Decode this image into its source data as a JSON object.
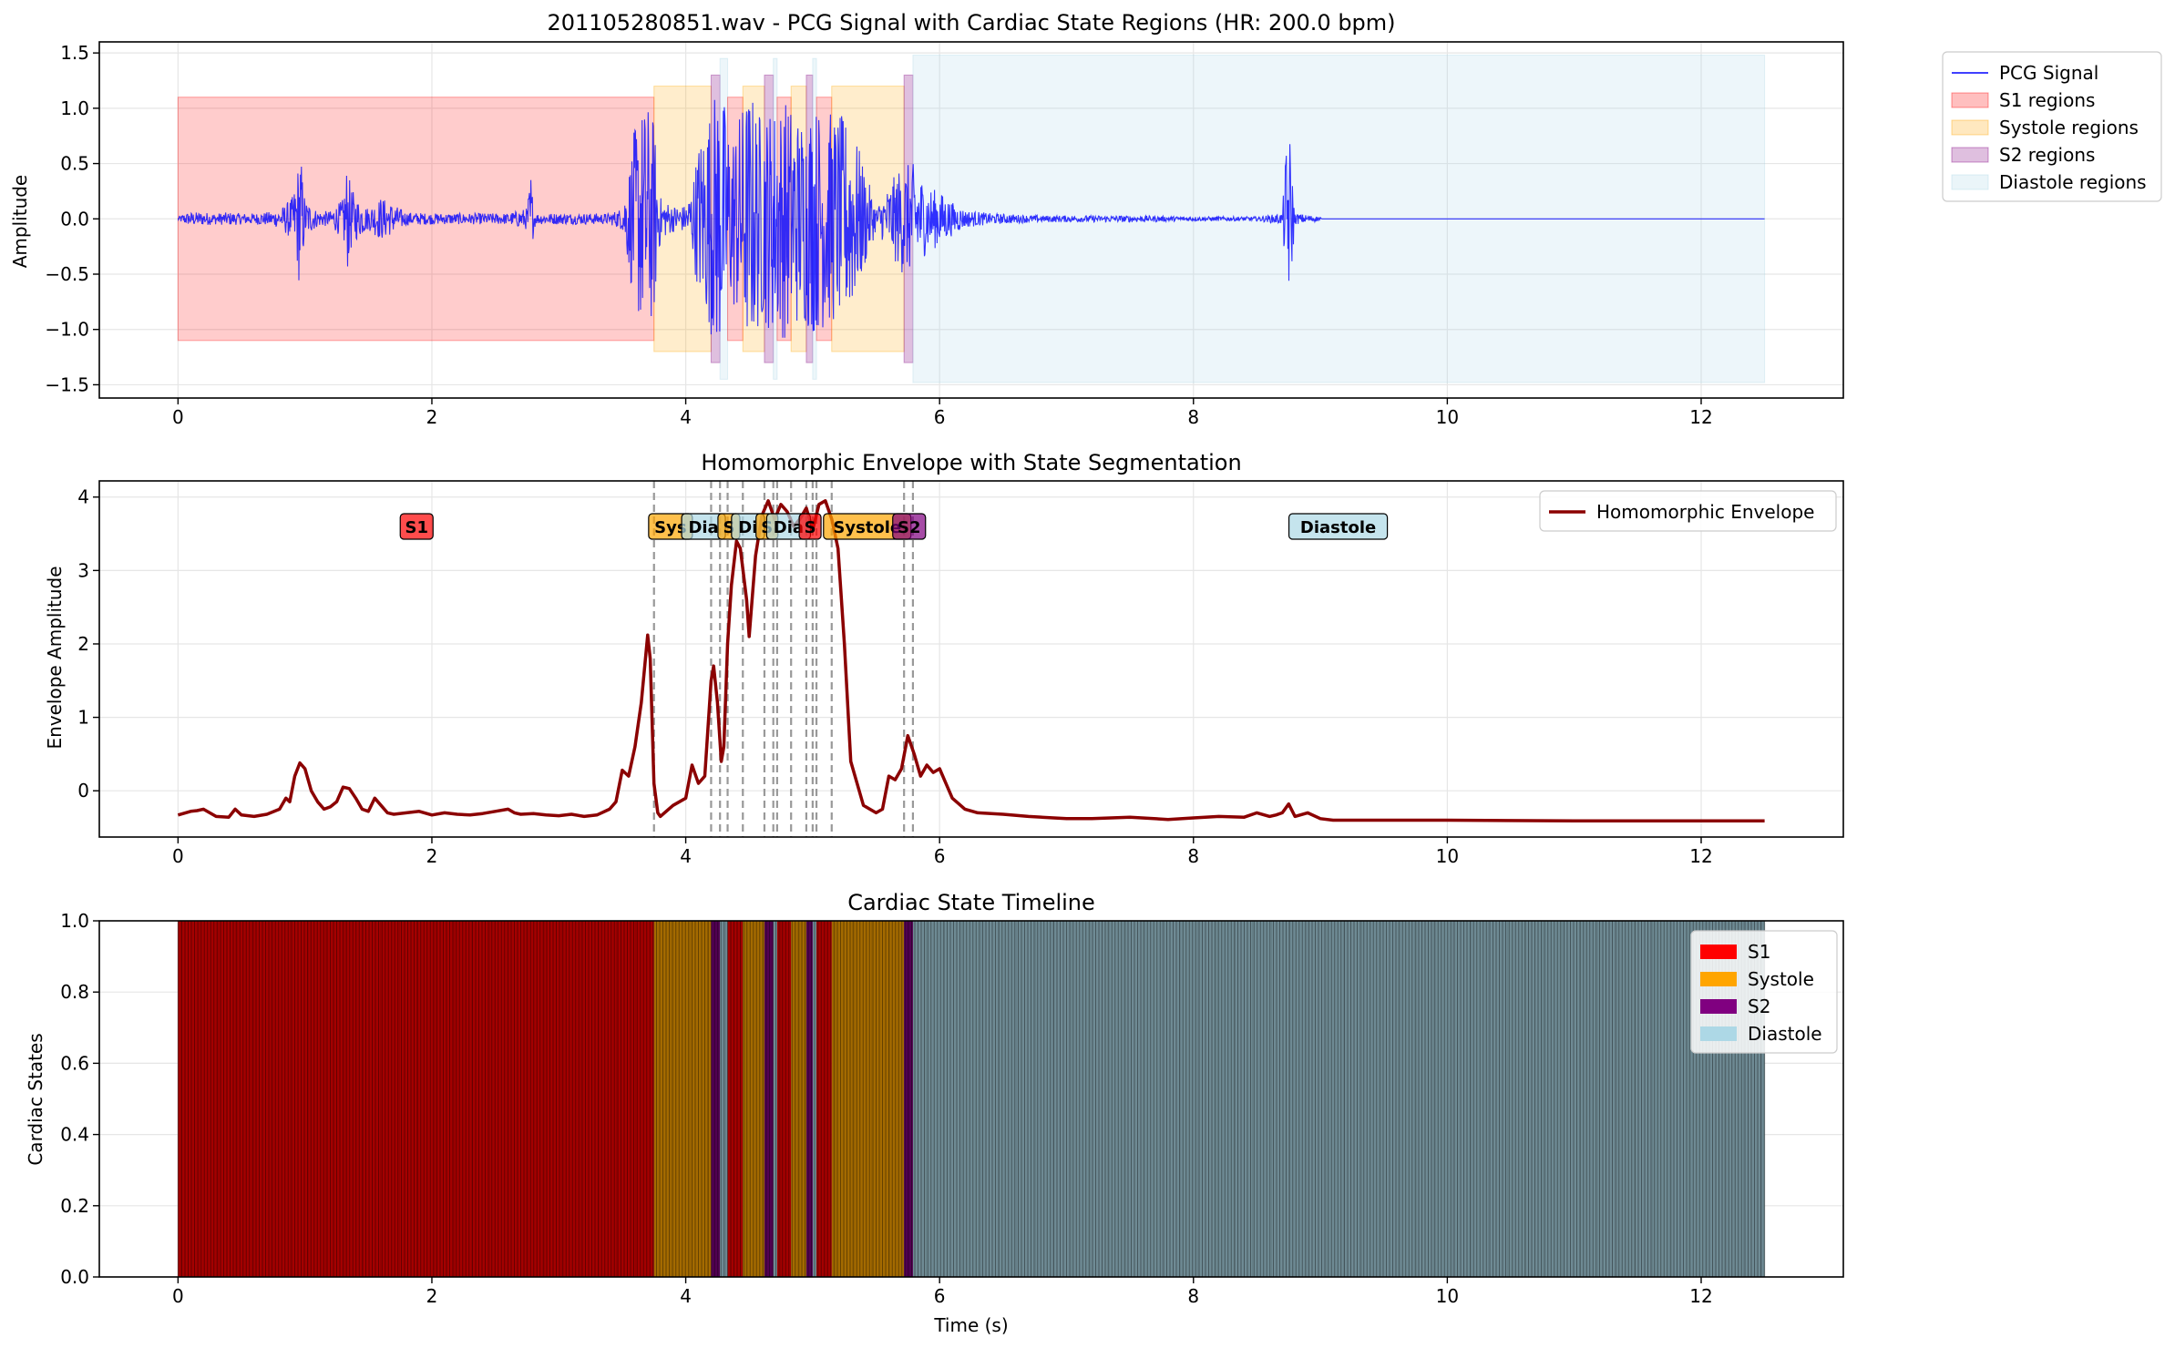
{
  "figure": {
    "colors": {
      "s1": "#ff0000",
      "systole": "#ffa500",
      "s2": "#800080",
      "diastole": "#add8e6",
      "signal": "#0000ff",
      "envelope": "#8b0000",
      "grid": "#e6e6e6"
    }
  },
  "chart_data": [
    {
      "type": "line",
      "title": "201105280851.wav - PCG Signal with Cardiac State Regions (HR: 200.0 bpm)",
      "xlabel": "",
      "ylabel": "Amplitude",
      "xlim": [
        -0.62,
        13.12
      ],
      "ylim": [
        -1.62,
        1.6
      ],
      "xticks": [
        0,
        2,
        4,
        6,
        8,
        10,
        12
      ],
      "xtick_labels": [
        "0",
        "2",
        "4",
        "6",
        "8",
        "10",
        "12"
      ],
      "yticks": [
        -1.5,
        -1.0,
        -0.5,
        0.0,
        0.5,
        1.0,
        1.5
      ],
      "ytick_labels": [
        "−1.5",
        "−1.0",
        "−0.5",
        "0.0",
        "0.5",
        "1.0",
        "1.5"
      ],
      "grid": true,
      "legend_placement": "outside-top-right",
      "legend": [
        {
          "label": "PCG Signal",
          "kind": "line",
          "key": "signal"
        },
        {
          "label": "S1 regions",
          "kind": "patch",
          "key": "s1"
        },
        {
          "label": "Systole regions",
          "kind": "patch",
          "key": "systole"
        },
        {
          "label": "S2 regions",
          "kind": "patch",
          "key": "s2"
        },
        {
          "label": "Diastole regions",
          "kind": "patch",
          "key": "diastole"
        }
      ],
      "regions": [
        {
          "state": "S1",
          "start": 0.0,
          "end": 3.75,
          "amp": 1.1
        },
        {
          "state": "Systole",
          "start": 3.75,
          "end": 4.2,
          "amp": 1.2
        },
        {
          "state": "S2",
          "start": 4.2,
          "end": 4.27,
          "amp": 1.3
        },
        {
          "state": "Diastole",
          "start": 4.27,
          "end": 4.33,
          "amp": 1.45
        },
        {
          "state": "S1",
          "start": 4.33,
          "end": 4.45,
          "amp": 1.1
        },
        {
          "state": "Systole",
          "start": 4.45,
          "end": 4.62,
          "amp": 1.2
        },
        {
          "state": "S2",
          "start": 4.62,
          "end": 4.69,
          "amp": 1.3
        },
        {
          "state": "Diastole",
          "start": 4.69,
          "end": 4.72,
          "amp": 1.45
        },
        {
          "state": "S1",
          "start": 4.72,
          "end": 4.83,
          "amp": 1.1
        },
        {
          "state": "Systole",
          "start": 4.83,
          "end": 4.95,
          "amp": 1.2
        },
        {
          "state": "S2",
          "start": 4.95,
          "end": 5.0,
          "amp": 1.3
        },
        {
          "state": "Diastole",
          "start": 5.0,
          "end": 5.03,
          "amp": 1.45
        },
        {
          "state": "S1",
          "start": 5.03,
          "end": 5.15,
          "amp": 1.1
        },
        {
          "state": "Systole",
          "start": 5.15,
          "end": 5.72,
          "amp": 1.2
        },
        {
          "state": "S2",
          "start": 5.72,
          "end": 5.79,
          "amp": 1.3
        },
        {
          "state": "Diastole",
          "start": 5.79,
          "end": 12.5,
          "amp": 1.48
        }
      ],
      "series": [
        {
          "name": "PCG Signal",
          "x": [
            0.0,
            0.05,
            0.1,
            0.2,
            0.3,
            0.4,
            0.5,
            0.6,
            0.7,
            0.8,
            0.9,
            0.93,
            0.96,
            1.0,
            1.1,
            1.2,
            1.3,
            1.33,
            1.36,
            1.4,
            1.5,
            1.6,
            1.8,
            2.0,
            2.2,
            2.4,
            2.6,
            2.75,
            2.78,
            2.8,
            2.82,
            3.0,
            3.2,
            3.4,
            3.5,
            3.55,
            3.6,
            3.65,
            3.7,
            3.75,
            3.8,
            3.9,
            4.0,
            4.05,
            4.1,
            4.15,
            4.2,
            4.25,
            4.3,
            4.35,
            4.4,
            4.5,
            4.6,
            4.7,
            4.8,
            4.9,
            5.0,
            5.1,
            5.2,
            5.3,
            5.5,
            5.7,
            5.75,
            5.8,
            5.9,
            6.0,
            6.1,
            6.2,
            6.4,
            6.6,
            6.8,
            7.0,
            7.5,
            8.0,
            8.5,
            8.7,
            8.73,
            8.76,
            8.8,
            9.0,
            9.01,
            10.0,
            11.0,
            12.0,
            12.5
          ],
          "amp": [
            0.02,
            0.05,
            0.06,
            0.06,
            0.05,
            0.06,
            0.05,
            0.05,
            0.06,
            0.08,
            0.2,
            0.35,
            0.67,
            0.18,
            0.07,
            0.07,
            0.18,
            0.5,
            0.3,
            0.2,
            0.1,
            0.2,
            0.06,
            0.05,
            0.05,
            0.05,
            0.05,
            0.1,
            0.45,
            0.12,
            0.05,
            0.05,
            0.05,
            0.05,
            0.1,
            0.45,
            0.85,
            1.0,
            1.05,
            0.9,
            0.2,
            0.12,
            0.12,
            0.3,
            0.7,
            0.9,
            1.05,
            1.25,
            1.1,
            0.8,
            0.9,
            1.2,
            0.95,
            1.05,
            1.1,
            0.95,
            1.05,
            1.0,
            0.95,
            0.9,
            0.1,
            0.5,
            0.5,
            0.5,
            0.3,
            0.25,
            0.15,
            0.08,
            0.05,
            0.04,
            0.03,
            0.03,
            0.03,
            0.02,
            0.02,
            0.05,
            0.65,
            0.75,
            0.05,
            0.02,
            0.0,
            0.0,
            0.0,
            0.0,
            0.0
          ]
        }
      ]
    },
    {
      "type": "line",
      "title": "Homomorphic Envelope with State Segmentation",
      "xlabel": "",
      "ylabel": "Envelope Amplitude",
      "xlim": [
        -0.62,
        13.12
      ],
      "ylim": [
        -0.63,
        4.22
      ],
      "xticks": [
        0,
        2,
        4,
        6,
        8,
        10,
        12
      ],
      "xtick_labels": [
        "0",
        "2",
        "4",
        "6",
        "8",
        "10",
        "12"
      ],
      "yticks": [
        0,
        1,
        2,
        3,
        4
      ],
      "ytick_labels": [
        "0",
        "1",
        "2",
        "3",
        "4"
      ],
      "grid": true,
      "legend_placement": "top-right",
      "legend": [
        {
          "label": "Homomorphic Envelope",
          "kind": "line",
          "key": "envelope"
        }
      ],
      "boundaries": [
        3.75,
        4.2,
        4.27,
        4.33,
        4.45,
        4.62,
        4.69,
        4.72,
        4.83,
        4.95,
        5.0,
        5.03,
        5.15,
        5.72,
        5.79
      ],
      "state_labels": [
        {
          "text": "S1",
          "x": 1.88,
          "key": "s1"
        },
        {
          "text": "Sys",
          "x": 3.88,
          "key": "systole"
        },
        {
          "text": "Dia",
          "x": 4.14,
          "key": "diastole"
        },
        {
          "text": "S",
          "x": 4.34,
          "key": "systole"
        },
        {
          "text": "Di",
          "x": 4.49,
          "key": "diastole"
        },
        {
          "text": "S",
          "x": 4.64,
          "key": "systole"
        },
        {
          "text": "Dia",
          "x": 4.81,
          "key": "diastole"
        },
        {
          "text": "S",
          "x": 4.98,
          "key": "s1"
        },
        {
          "text": "Systole",
          "x": 5.43,
          "key": "systole"
        },
        {
          "text": "S2",
          "x": 5.76,
          "key": "s2"
        },
        {
          "text": "Diastole",
          "x": 9.14,
          "key": "diastole"
        }
      ],
      "series": [
        {
          "name": "Homomorphic Envelope",
          "x": [
            0.0,
            0.1,
            0.15,
            0.2,
            0.3,
            0.4,
            0.45,
            0.5,
            0.6,
            0.7,
            0.8,
            0.85,
            0.88,
            0.92,
            0.96,
            1.0,
            1.05,
            1.1,
            1.15,
            1.2,
            1.25,
            1.3,
            1.35,
            1.4,
            1.45,
            1.5,
            1.55,
            1.6,
            1.65,
            1.7,
            1.8,
            1.9,
            2.0,
            2.1,
            2.2,
            2.3,
            2.4,
            2.5,
            2.6,
            2.65,
            2.7,
            2.8,
            2.9,
            3.0,
            3.1,
            3.2,
            3.3,
            3.4,
            3.45,
            3.5,
            3.55,
            3.6,
            3.65,
            3.7,
            3.72,
            3.75,
            3.78,
            3.8,
            3.9,
            4.0,
            4.05,
            4.1,
            4.15,
            4.2,
            4.22,
            4.25,
            4.28,
            4.3,
            4.33,
            4.36,
            4.4,
            4.43,
            4.48,
            4.5,
            4.55,
            4.6,
            4.65,
            4.7,
            4.75,
            4.8,
            4.85,
            4.9,
            4.95,
            5.0,
            5.05,
            5.1,
            5.15,
            5.2,
            5.25,
            5.3,
            5.4,
            5.5,
            5.55,
            5.6,
            5.65,
            5.7,
            5.75,
            5.8,
            5.85,
            5.9,
            5.95,
            6.0,
            6.05,
            6.1,
            6.2,
            6.3,
            6.5,
            6.7,
            6.9,
            7.0,
            7.2,
            7.5,
            7.8,
            8.0,
            8.2,
            8.4,
            8.5,
            8.6,
            8.65,
            8.7,
            8.75,
            8.8,
            8.9,
            9.0,
            9.1,
            9.5,
            10.0,
            11.0,
            12.0,
            12.5
          ],
          "y": [
            -0.33,
            -0.28,
            -0.27,
            -0.25,
            -0.35,
            -0.36,
            -0.25,
            -0.33,
            -0.35,
            -0.32,
            -0.25,
            -0.1,
            -0.15,
            0.2,
            0.38,
            0.3,
            0.0,
            -0.15,
            -0.25,
            -0.22,
            -0.15,
            0.05,
            0.03,
            -0.1,
            -0.25,
            -0.28,
            -0.1,
            -0.2,
            -0.3,
            -0.32,
            -0.3,
            -0.28,
            -0.33,
            -0.3,
            -0.32,
            -0.33,
            -0.31,
            -0.28,
            -0.25,
            -0.3,
            -0.32,
            -0.31,
            -0.33,
            -0.34,
            -0.32,
            -0.35,
            -0.33,
            -0.25,
            -0.15,
            0.28,
            0.2,
            0.6,
            1.2,
            2.12,
            1.8,
            0.1,
            -0.3,
            -0.35,
            -0.2,
            -0.1,
            0.35,
            0.1,
            0.2,
            1.5,
            1.7,
            1.2,
            0.4,
            0.6,
            2.0,
            2.8,
            3.4,
            3.3,
            2.6,
            2.1,
            3.2,
            3.75,
            3.95,
            3.7,
            3.9,
            3.8,
            3.6,
            3.7,
            3.85,
            3.55,
            3.9,
            3.95,
            3.7,
            3.3,
            2.0,
            0.4,
            -0.2,
            -0.3,
            -0.25,
            0.2,
            0.15,
            0.3,
            0.75,
            0.5,
            0.2,
            0.35,
            0.25,
            0.3,
            0.1,
            -0.1,
            -0.25,
            -0.3,
            -0.32,
            -0.35,
            -0.37,
            -0.38,
            -0.38,
            -0.36,
            -0.39,
            -0.37,
            -0.35,
            -0.36,
            -0.3,
            -0.35,
            -0.33,
            -0.3,
            -0.18,
            -0.35,
            -0.3,
            -0.38,
            -0.4,
            -0.4,
            -0.4,
            -0.41,
            -0.41,
            -0.41
          ]
        }
      ]
    },
    {
      "type": "bar",
      "title": "Cardiac State Timeline",
      "xlabel": "Time (s)",
      "ylabel": "Cardiac States",
      "xlim": [
        -0.62,
        13.12
      ],
      "ylim": [
        0.0,
        1.0
      ],
      "xticks": [
        0,
        2,
        4,
        6,
        8,
        10,
        12
      ],
      "xtick_labels": [
        "0",
        "2",
        "4",
        "6",
        "8",
        "10",
        "12"
      ],
      "yticks": [
        0.0,
        0.2,
        0.4,
        0.6,
        0.8,
        1.0
      ],
      "ytick_labels": [
        "0.0",
        "0.2",
        "0.4",
        "0.6",
        "0.8",
        "1.0"
      ],
      "grid": true,
      "legend_placement": "top-right",
      "legend": [
        {
          "label": "S1",
          "kind": "patch",
          "key": "s1"
        },
        {
          "label": "Systole",
          "kind": "patch",
          "key": "systole"
        },
        {
          "label": "S2",
          "kind": "patch",
          "key": "s2"
        },
        {
          "label": "Diastole",
          "kind": "patch",
          "key": "diastole"
        }
      ],
      "segments": [
        {
          "state": "S1",
          "start": 0.0,
          "end": 3.75
        },
        {
          "state": "Systole",
          "start": 3.75,
          "end": 4.2
        },
        {
          "state": "S2",
          "start": 4.2,
          "end": 4.27
        },
        {
          "state": "Diastole",
          "start": 4.27,
          "end": 4.33
        },
        {
          "state": "S1",
          "start": 4.33,
          "end": 4.45
        },
        {
          "state": "Systole",
          "start": 4.45,
          "end": 4.62
        },
        {
          "state": "S2",
          "start": 4.62,
          "end": 4.69
        },
        {
          "state": "Diastole",
          "start": 4.69,
          "end": 4.72
        },
        {
          "state": "S1",
          "start": 4.72,
          "end": 4.83
        },
        {
          "state": "Systole",
          "start": 4.83,
          "end": 4.95
        },
        {
          "state": "S2",
          "start": 4.95,
          "end": 5.0
        },
        {
          "state": "Diastole",
          "start": 5.0,
          "end": 5.03
        },
        {
          "state": "S1",
          "start": 5.03,
          "end": 5.15
        },
        {
          "state": "Systole",
          "start": 5.15,
          "end": 5.72
        },
        {
          "state": "S2",
          "start": 5.72,
          "end": 5.79
        },
        {
          "state": "Diastole",
          "start": 5.79,
          "end": 12.5
        }
      ]
    }
  ]
}
